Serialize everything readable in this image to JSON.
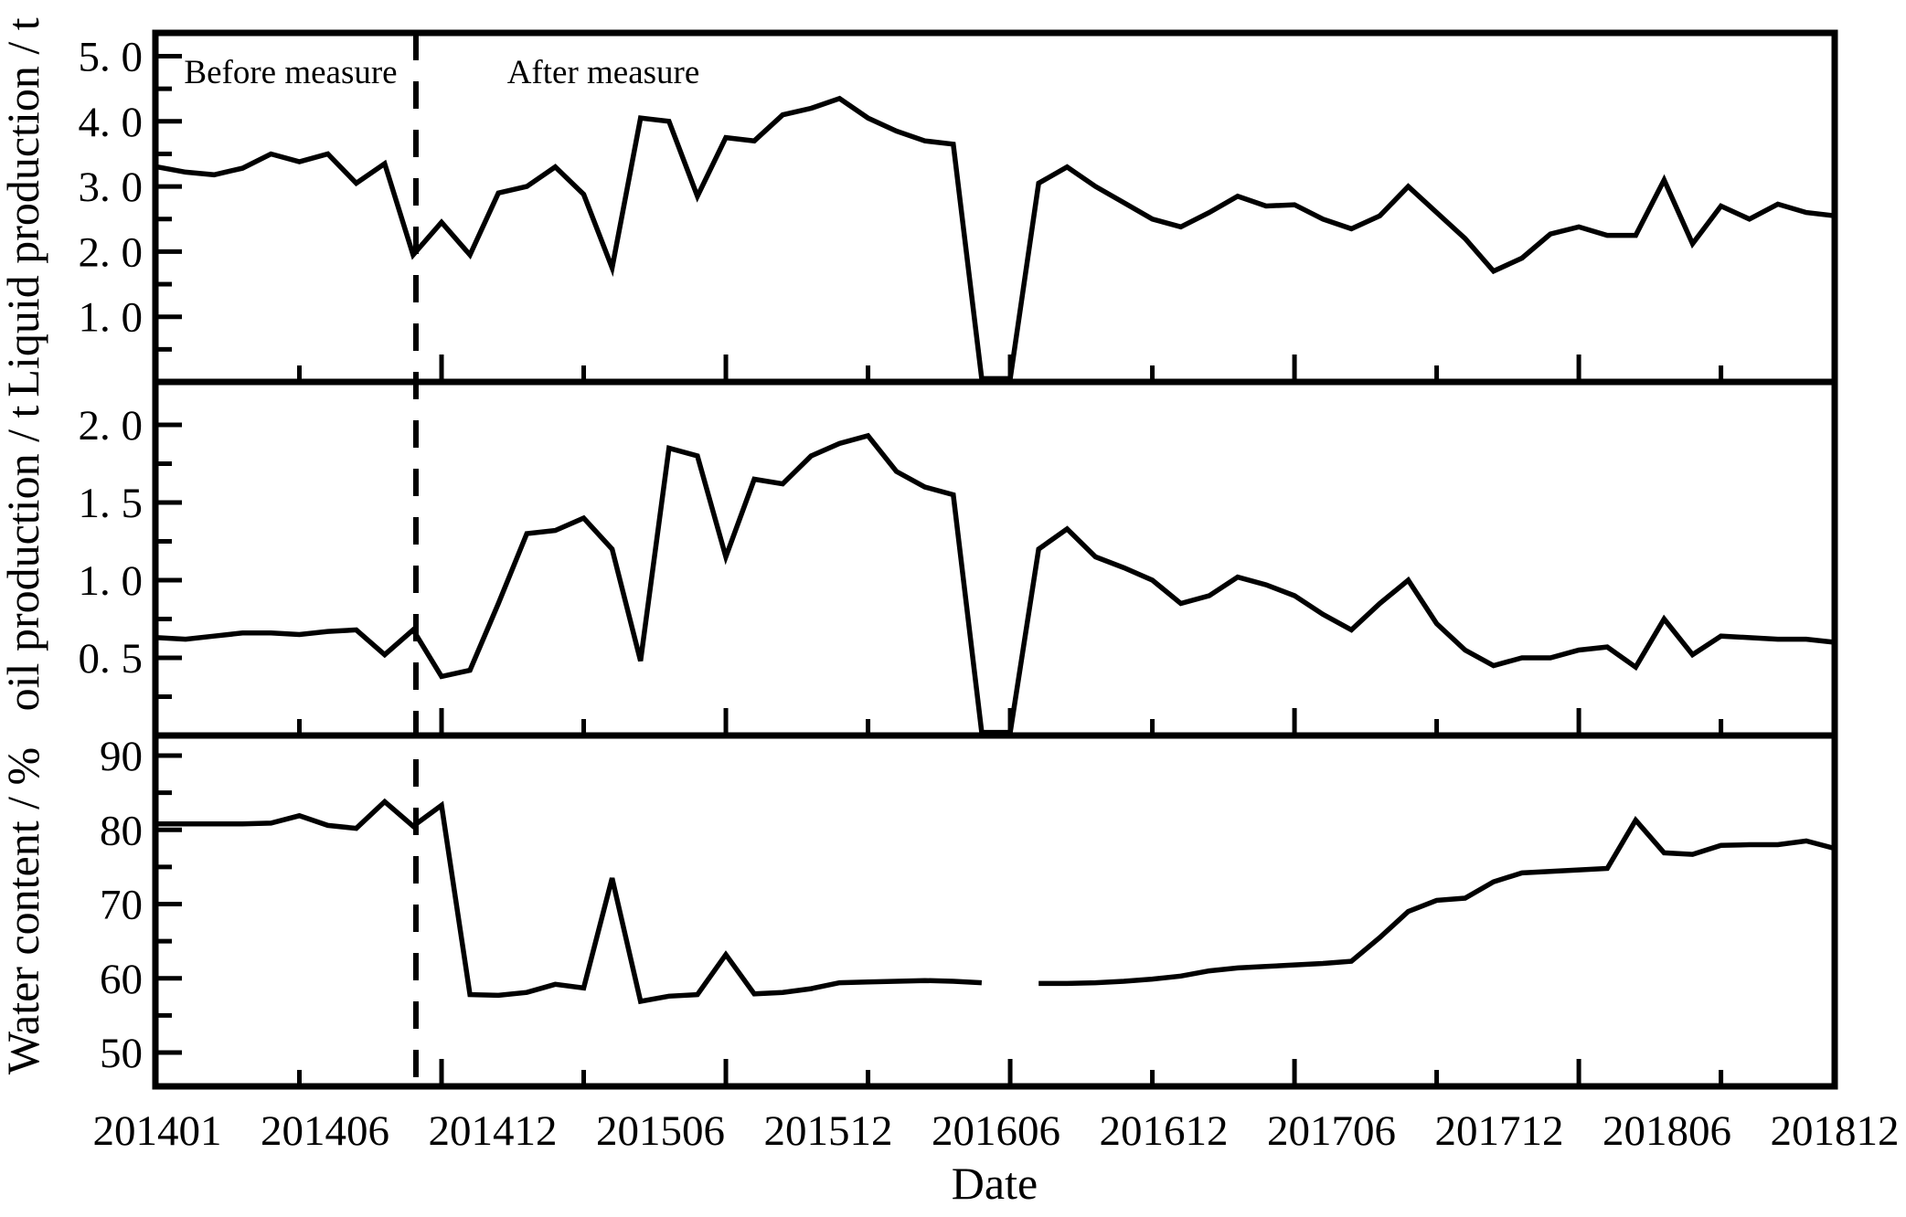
{
  "figure": {
    "background": "#ffffff",
    "line_color": "#000000",
    "annotation_before": "Before measure",
    "annotation_after": "After measure",
    "measure_vline_month": "201410",
    "measure_vline_month_index": 9.15
  },
  "axes": {
    "x_title": "Date",
    "x_tick_labels": [
      "201401",
      "201406",
      "201412",
      "201506",
      "201512",
      "201606",
      "201612",
      "201706",
      "201712",
      "201806",
      "201812"
    ]
  },
  "chart_data": [
    {
      "type": "line",
      "title": "Liquid production panel",
      "ylabel": "Liquid production / t",
      "xlabel": "Date",
      "ylim": [
        0,
        5.35
      ],
      "ytick_values": [
        5.0,
        4.0,
        3.0,
        2.0,
        1.0
      ],
      "ytick_labels": [
        "5. 0",
        "4. 0",
        "3. 0",
        "2. 0",
        "1. 0"
      ],
      "ytick_minor": [
        4.5,
        3.5,
        2.5,
        1.5,
        0.5
      ],
      "grid": false,
      "legend": "none",
      "categories": [
        "201401",
        "201402",
        "201403",
        "201404",
        "201405",
        "201406",
        "201407",
        "201408",
        "201409",
        "201410",
        "201411",
        "201412",
        "201501",
        "201502",
        "201503",
        "201504",
        "201505",
        "201506",
        "201507",
        "201508",
        "201509",
        "201510",
        "201511",
        "201512",
        "201601",
        "201602",
        "201603",
        "201604",
        "201605",
        "201606",
        "201607",
        "201608",
        "201609",
        "201610",
        "201611",
        "201612",
        "201701",
        "201702",
        "201703",
        "201704",
        "201705",
        "201706",
        "201707",
        "201708",
        "201709",
        "201710",
        "201711",
        "201712",
        "201801",
        "201802",
        "201803",
        "201804",
        "201805",
        "201806",
        "201807",
        "201808",
        "201809",
        "201810",
        "201811",
        "201812"
      ],
      "values": [
        3.3,
        3.22,
        3.18,
        3.28,
        3.5,
        3.38,
        3.5,
        3.05,
        3.35,
        1.95,
        2.45,
        1.95,
        2.9,
        3.0,
        3.3,
        2.88,
        1.75,
        4.05,
        4.0,
        2.85,
        3.75,
        3.7,
        4.1,
        4.2,
        4.35,
        4.05,
        3.85,
        3.7,
        3.65,
        0.05,
        0.05,
        3.05,
        3.3,
        3.0,
        2.75,
        2.5,
        2.38,
        2.6,
        2.85,
        2.7,
        2.72,
        2.5,
        2.35,
        2.55,
        3.0,
        2.6,
        2.2,
        1.7,
        1.9,
        2.27,
        2.38,
        2.25,
        2.25,
        3.1,
        2.12,
        2.7,
        2.5,
        2.73,
        2.6,
        2.55
      ]
    },
    {
      "type": "line",
      "title": "Oil production panel",
      "ylabel": "oil production / t",
      "xlabel": "Date",
      "ylim": [
        0,
        2.28
      ],
      "ytick_values": [
        2.0,
        1.5,
        1.0,
        0.5
      ],
      "ytick_labels": [
        "2. 0",
        "1. 5",
        "1. 0",
        "0. 5"
      ],
      "ytick_minor": [
        1.75,
        1.25,
        0.75,
        0.25
      ],
      "grid": false,
      "legend": "none",
      "categories": [
        "201401",
        "201402",
        "201403",
        "201404",
        "201405",
        "201406",
        "201407",
        "201408",
        "201409",
        "201410",
        "201411",
        "201412",
        "201501",
        "201502",
        "201503",
        "201504",
        "201505",
        "201506",
        "201507",
        "201508",
        "201509",
        "201510",
        "201511",
        "201512",
        "201601",
        "201602",
        "201603",
        "201604",
        "201605",
        "201606",
        "201607",
        "201608",
        "201609",
        "201610",
        "201611",
        "201612",
        "201701",
        "201702",
        "201703",
        "201704",
        "201705",
        "201706",
        "201707",
        "201708",
        "201709",
        "201710",
        "201711",
        "201712",
        "201801",
        "201802",
        "201803",
        "201804",
        "201805",
        "201806",
        "201807",
        "201808",
        "201809",
        "201810",
        "201811",
        "201812"
      ],
      "values": [
        0.63,
        0.62,
        0.64,
        0.66,
        0.66,
        0.65,
        0.67,
        0.68,
        0.52,
        0.68,
        0.38,
        0.42,
        0.85,
        1.3,
        1.32,
        1.4,
        1.2,
        0.48,
        1.85,
        1.8,
        1.15,
        1.65,
        1.62,
        1.8,
        1.88,
        1.93,
        1.7,
        1.6,
        1.55,
        0.02,
        0.02,
        1.2,
        1.33,
        1.15,
        1.08,
        1.0,
        0.85,
        0.9,
        1.02,
        0.97,
        0.9,
        0.78,
        0.68,
        0.85,
        1.0,
        0.72,
        0.55,
        0.45,
        0.5,
        0.5,
        0.55,
        0.57,
        0.44,
        0.75,
        0.52,
        0.64,
        0.63,
        0.62,
        0.62,
        0.6
      ]
    },
    {
      "type": "line",
      "title": "Water content panel",
      "ylabel": "Water content / %",
      "xlabel": "Date",
      "ylim": [
        45.4,
        92.7
      ],
      "ytick_values": [
        90,
        80,
        70,
        60,
        50
      ],
      "ytick_labels": [
        "90",
        "80",
        "70",
        "60",
        "50"
      ],
      "ytick_minor": [
        85,
        75,
        65,
        55
      ],
      "grid": false,
      "legend": "none",
      "gap_note": "no data point at 201607 (line break)",
      "categories": [
        "201401",
        "201402",
        "201403",
        "201404",
        "201405",
        "201406",
        "201407",
        "201408",
        "201409",
        "201410",
        "201411",
        "201412",
        "201501",
        "201502",
        "201503",
        "201504",
        "201505",
        "201506",
        "201507",
        "201508",
        "201509",
        "201510",
        "201511",
        "201512",
        "201601",
        "201602",
        "201603",
        "201604",
        "201605",
        "201606",
        "201607",
        "201608",
        "201609",
        "201610",
        "201611",
        "201612",
        "201701",
        "201702",
        "201703",
        "201704",
        "201705",
        "201706",
        "201707",
        "201708",
        "201709",
        "201710",
        "201711",
        "201712",
        "201801",
        "201802",
        "201803",
        "201804",
        "201805",
        "201806",
        "201807",
        "201808",
        "201809",
        "201810",
        "201811",
        "201812"
      ],
      "values": [
        80.8,
        80.8,
        80.8,
        80.8,
        80.9,
        81.9,
        80.6,
        80.2,
        83.8,
        80.5,
        83.3,
        57.8,
        57.7,
        58.1,
        59.2,
        58.7,
        73.5,
        56.9,
        57.6,
        57.8,
        63.2,
        57.9,
        58.1,
        58.6,
        59.4,
        59.5,
        59.6,
        59.7,
        59.6,
        59.4,
        null,
        59.3,
        59.3,
        59.4,
        59.6,
        59.9,
        60.3,
        61.0,
        61.4,
        61.6,
        61.8,
        62.0,
        62.3,
        65.5,
        69.0,
        70.5,
        70.8,
        73.0,
        74.2,
        74.4,
        74.6,
        74.8,
        81.3,
        76.9,
        76.7,
        77.9,
        78.0,
        78.0,
        78.5,
        77.5
      ]
    }
  ]
}
